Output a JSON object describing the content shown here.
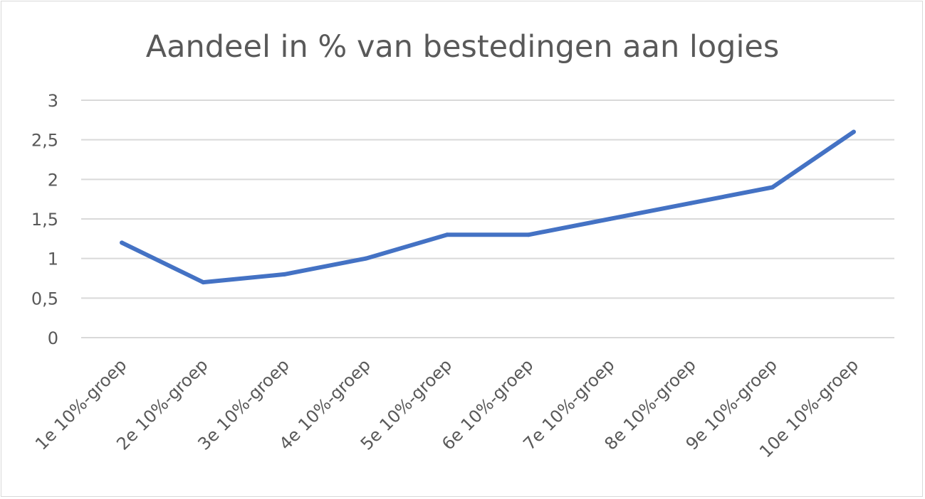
{
  "chart_data": {
    "type": "line",
    "title": "Aandeel in % van bestedingen aan logies",
    "xlabel": "",
    "ylabel": "",
    "categories": [
      "1e 10%-groep",
      "2e 10%-groep",
      "3e 10%-groep",
      "4e 10%-groep",
      "5e 10%-groep",
      "6e 10%-groep",
      "7e 10%-groep",
      "8e 10%-groep",
      "9e 10%-groep",
      "10e 10%-groep"
    ],
    "series": [
      {
        "values": [
          1.2,
          0.7,
          0.8,
          1.0,
          1.3,
          1.3,
          1.5,
          1.7,
          1.9,
          2.6
        ],
        "color": "#4472c4"
      }
    ],
    "ylim": [
      0,
      3
    ],
    "yticks": [
      0,
      0.5,
      1,
      1.5,
      2,
      2.5,
      3
    ],
    "ytick_labels": [
      "0",
      "0,5",
      "1",
      "1,5",
      "2",
      "2,5",
      "3"
    ],
    "grid": true,
    "legend": "none"
  }
}
